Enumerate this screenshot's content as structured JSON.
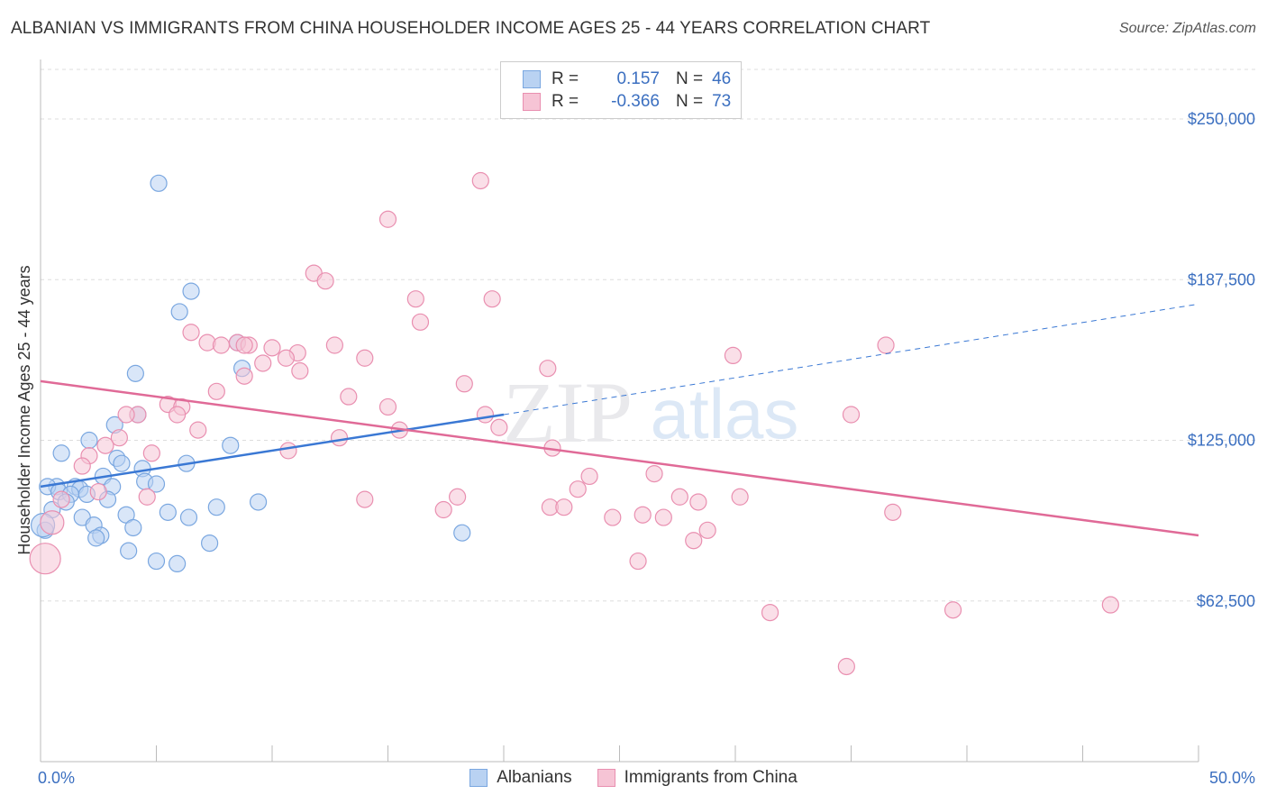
{
  "header": {
    "title": "ALBANIAN VS IMMIGRANTS FROM CHINA HOUSEHOLDER INCOME AGES 25 - 44 YEARS CORRELATION CHART",
    "source": "Source: ZipAtlas.com"
  },
  "watermark": {
    "zip": "ZIP",
    "atlas": "atlas"
  },
  "legend": {
    "rows": [
      {
        "r_label": "R =",
        "r_value": "0.157",
        "n_label": "N =",
        "n_value": "46",
        "color": "#7aa7e0",
        "fill": "#b9d2f2"
      },
      {
        "r_label": "R =",
        "r_value": "-0.366",
        "n_label": "N =",
        "n_value": "73",
        "color": "#e98fb0",
        "fill": "#f6c4d5"
      }
    ]
  },
  "bottom_legend": {
    "items": [
      {
        "label": "Albanians",
        "color": "#7aa7e0",
        "fill": "#b9d2f2"
      },
      {
        "label": "Immigrants from China",
        "color": "#e98fb0",
        "fill": "#f6c4d5"
      }
    ]
  },
  "chart_data": {
    "type": "scatter",
    "title": "ALBANIAN VS IMMIGRANTS FROM CHINA HOUSEHOLDER INCOME AGES 25 - 44 YEARS CORRELATION CHART",
    "xlabel": "",
    "ylabel": "Householder Income Ages 25 - 44 years",
    "xlim": [
      0,
      50
    ],
    "ylim": [
      0,
      270000
    ],
    "x_tick_labels": [
      "0.0%",
      "50.0%"
    ],
    "y_ticks": [
      62500,
      125000,
      187500,
      250000
    ],
    "y_tick_labels": [
      "$62,500",
      "$125,000",
      "$187,500",
      "$250,000"
    ],
    "grid": true,
    "legend_position": "top-center",
    "series": [
      {
        "name": "Albanians",
        "color": "#3a78d4",
        "marker_fill": "#b9d2f2",
        "marker_stroke": "#7aa7e0",
        "trend": {
          "x": [
            0,
            20
          ],
          "y": [
            107000,
            135000
          ],
          "extended_to_x": 50,
          "extended_y": 178000
        },
        "points": [
          [
            5.1,
            225000
          ],
          [
            6.5,
            183000
          ],
          [
            6.0,
            175000
          ],
          [
            8.5,
            163000
          ],
          [
            8.7,
            153000
          ],
          [
            4.1,
            151000
          ],
          [
            4.2,
            135000
          ],
          [
            3.2,
            131000
          ],
          [
            0.9,
            120000
          ],
          [
            2.1,
            125000
          ],
          [
            8.2,
            123000
          ],
          [
            3.3,
            118000
          ],
          [
            3.5,
            116000
          ],
          [
            4.4,
            114000
          ],
          [
            6.3,
            116000
          ],
          [
            2.7,
            111000
          ],
          [
            4.5,
            109000
          ],
          [
            5.0,
            108000
          ],
          [
            0.7,
            107000
          ],
          [
            1.5,
            107000
          ],
          [
            1.7,
            106000
          ],
          [
            0.3,
            107000
          ],
          [
            0.8,
            105000
          ],
          [
            1.3,
            104000
          ],
          [
            2.0,
            104000
          ],
          [
            3.1,
            107000
          ],
          [
            2.9,
            102000
          ],
          [
            1.1,
            101000
          ],
          [
            9.4,
            101000
          ],
          [
            7.6,
            99000
          ],
          [
            0.5,
            98000
          ],
          [
            5.5,
            97000
          ],
          [
            1.8,
            95000
          ],
          [
            3.7,
            96000
          ],
          [
            6.4,
            95000
          ],
          [
            2.3,
            92000
          ],
          [
            4.0,
            91000
          ],
          [
            0.2,
            90000
          ],
          [
            2.6,
            88000
          ],
          [
            2.4,
            87000
          ],
          [
            7.3,
            85000
          ],
          [
            18.2,
            89000
          ],
          [
            3.8,
            82000
          ],
          [
            5.0,
            78000
          ],
          [
            5.9,
            77000
          ],
          [
            0.1,
            92000
          ]
        ]
      },
      {
        "name": "Immigrants from China",
        "color": "#e06a97",
        "marker_fill": "#f6c4d5",
        "marker_stroke": "#e98fb0",
        "trend": {
          "x": [
            0,
            50
          ],
          "y": [
            148000,
            88000
          ]
        },
        "points": [
          [
            19.0,
            226000
          ],
          [
            15.0,
            211000
          ],
          [
            11.8,
            190000
          ],
          [
            12.3,
            187000
          ],
          [
            16.2,
            180000
          ],
          [
            19.5,
            180000
          ],
          [
            16.4,
            171000
          ],
          [
            6.5,
            167000
          ],
          [
            7.2,
            163000
          ],
          [
            8.5,
            163000
          ],
          [
            9.0,
            162000
          ],
          [
            12.7,
            162000
          ],
          [
            10.0,
            161000
          ],
          [
            11.1,
            159000
          ],
          [
            7.8,
            162000
          ],
          [
            29.9,
            158000
          ],
          [
            36.5,
            162000
          ],
          [
            14.0,
            157000
          ],
          [
            10.6,
            157000
          ],
          [
            9.6,
            155000
          ],
          [
            21.9,
            153000
          ],
          [
            11.2,
            152000
          ],
          [
            8.8,
            150000
          ],
          [
            18.3,
            147000
          ],
          [
            7.6,
            144000
          ],
          [
            13.3,
            142000
          ],
          [
            5.5,
            139000
          ],
          [
            6.1,
            138000
          ],
          [
            15.0,
            138000
          ],
          [
            4.2,
            135000
          ],
          [
            5.9,
            135000
          ],
          [
            3.7,
            135000
          ],
          [
            19.2,
            135000
          ],
          [
            35.0,
            135000
          ],
          [
            19.8,
            130000
          ],
          [
            6.8,
            129000
          ],
          [
            3.4,
            126000
          ],
          [
            2.8,
            123000
          ],
          [
            12.9,
            126000
          ],
          [
            15.5,
            129000
          ],
          [
            22.1,
            122000
          ],
          [
            10.7,
            121000
          ],
          [
            4.8,
            120000
          ],
          [
            2.1,
            119000
          ],
          [
            1.8,
            115000
          ],
          [
            26.5,
            112000
          ],
          [
            23.7,
            111000
          ],
          [
            4.6,
            103000
          ],
          [
            2.5,
            105000
          ],
          [
            0.9,
            102000
          ],
          [
            23.2,
            106000
          ],
          [
            18.0,
            103000
          ],
          [
            27.6,
            103000
          ],
          [
            30.2,
            103000
          ],
          [
            14.0,
            102000
          ],
          [
            28.4,
            101000
          ],
          [
            22.0,
            99000
          ],
          [
            22.6,
            99000
          ],
          [
            17.4,
            98000
          ],
          [
            26.0,
            96000
          ],
          [
            26.9,
            95000
          ],
          [
            24.7,
            95000
          ],
          [
            36.8,
            97000
          ],
          [
            0.5,
            93000
          ],
          [
            28.8,
            90000
          ],
          [
            28.2,
            86000
          ],
          [
            25.8,
            78000
          ],
          [
            0.2,
            79000
          ],
          [
            31.5,
            58000
          ],
          [
            39.4,
            59000
          ],
          [
            46.2,
            61000
          ],
          [
            34.8,
            37000
          ],
          [
            8.8,
            162000
          ]
        ]
      }
    ]
  }
}
